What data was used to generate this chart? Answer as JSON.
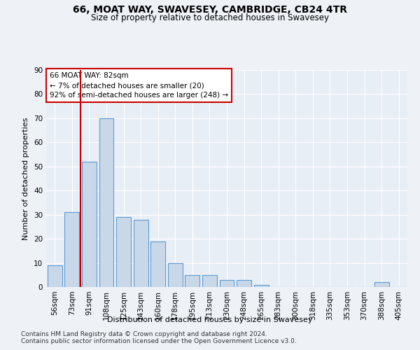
{
  "title1": "66, MOAT WAY, SWAVESEY, CAMBRIDGE, CB24 4TR",
  "title2": "Size of property relative to detached houses in Swavesey",
  "xlabel": "Distribution of detached houses by size in Swavesey",
  "ylabel": "Number of detached properties",
  "bar_labels": [
    "56sqm",
    "73sqm",
    "91sqm",
    "108sqm",
    "125sqm",
    "143sqm",
    "160sqm",
    "178sqm",
    "195sqm",
    "213sqm",
    "230sqm",
    "248sqm",
    "265sqm",
    "283sqm",
    "300sqm",
    "318sqm",
    "335sqm",
    "353sqm",
    "370sqm",
    "388sqm",
    "405sqm"
  ],
  "bar_values": [
    9,
    31,
    52,
    70,
    29,
    28,
    19,
    10,
    5,
    5,
    3,
    3,
    1,
    0,
    0,
    0,
    0,
    0,
    0,
    2,
    0
  ],
  "bar_color": "#c8d8e8",
  "bar_edgecolor": "#5b9bd5",
  "annotation_title": "66 MOAT WAY: 82sqm",
  "annotation_line1": "← 7% of detached houses are smaller (20)",
  "annotation_line2": "92% of semi-detached houses are larger (248) →",
  "vline_color": "#cc0000",
  "vline_x": 1.5,
  "ylim": [
    0,
    90
  ],
  "yticks": [
    0,
    10,
    20,
    30,
    40,
    50,
    60,
    70,
    80,
    90
  ],
  "footnote1": "Contains HM Land Registry data © Crown copyright and database right 2024.",
  "footnote2": "Contains public sector information licensed under the Open Government Licence v3.0.",
  "bg_color": "#eef2f7",
  "plot_bg_color": "#e8eef6",
  "title_fontsize": 10,
  "subtitle_fontsize": 8.5,
  "label_fontsize": 8,
  "tick_fontsize": 7.5,
  "footnote_fontsize": 6.5
}
